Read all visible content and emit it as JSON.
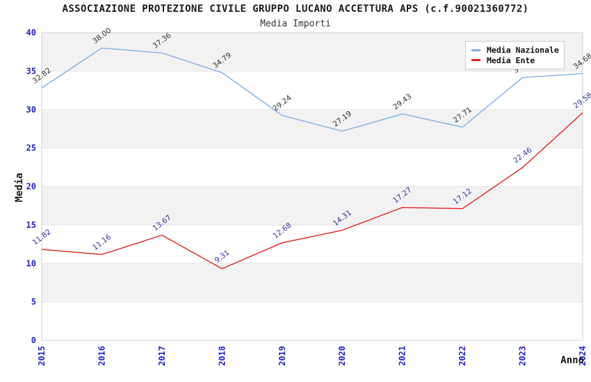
{
  "chart_data": {
    "type": "line",
    "title": "ASSOCIAZIONE PROTEZIONE CIVILE GRUPPO LUCANO ACCETTURA APS (c.f.90021360772)",
    "subtitle": "Media Importi",
    "xlabel": "Anno",
    "ylabel": "Media",
    "x_categories": [
      "2015",
      "2016",
      "2017",
      "2018",
      "2019",
      "2020",
      "2021",
      "2022",
      "2023",
      "2024"
    ],
    "ylim": [
      0,
      40
    ],
    "ytick_step": 5,
    "y_ticks": [
      "0",
      "5",
      "10",
      "15",
      "20",
      "25",
      "30",
      "35",
      "40"
    ],
    "grid": "horizontal",
    "legend_position": "top-right",
    "series": [
      {
        "name": "Media Nazionale",
        "color": "#7fafe2",
        "label_color": "#333333",
        "values": [
          32.82,
          38.0,
          37.36,
          34.79,
          29.24,
          27.19,
          29.43,
          27.71,
          34.16,
          34.68
        ],
        "point_labels": [
          "32.82",
          "38.00",
          "37.36",
          "34.79",
          "29.24",
          "27.19",
          "29.43",
          "27.71",
          "34.16",
          "34.68"
        ]
      },
      {
        "name": "Media Ente",
        "color": "#e02020",
        "label_color": "#333399",
        "values": [
          11.82,
          11.16,
          13.67,
          9.31,
          12.68,
          14.31,
          17.27,
          17.12,
          22.46,
          29.58
        ],
        "point_labels": [
          "11.82",
          "11.16",
          "13.67",
          "9.31",
          "12.68",
          "14.31",
          "17.27",
          "17.12",
          "22.46",
          "29.58"
        ]
      }
    ],
    "colors": {
      "tick_label": "#2222cc",
      "band_fill": "#f2f2f2",
      "grid_line": "#e5e5e5",
      "plot_border": "#cccccc"
    }
  }
}
